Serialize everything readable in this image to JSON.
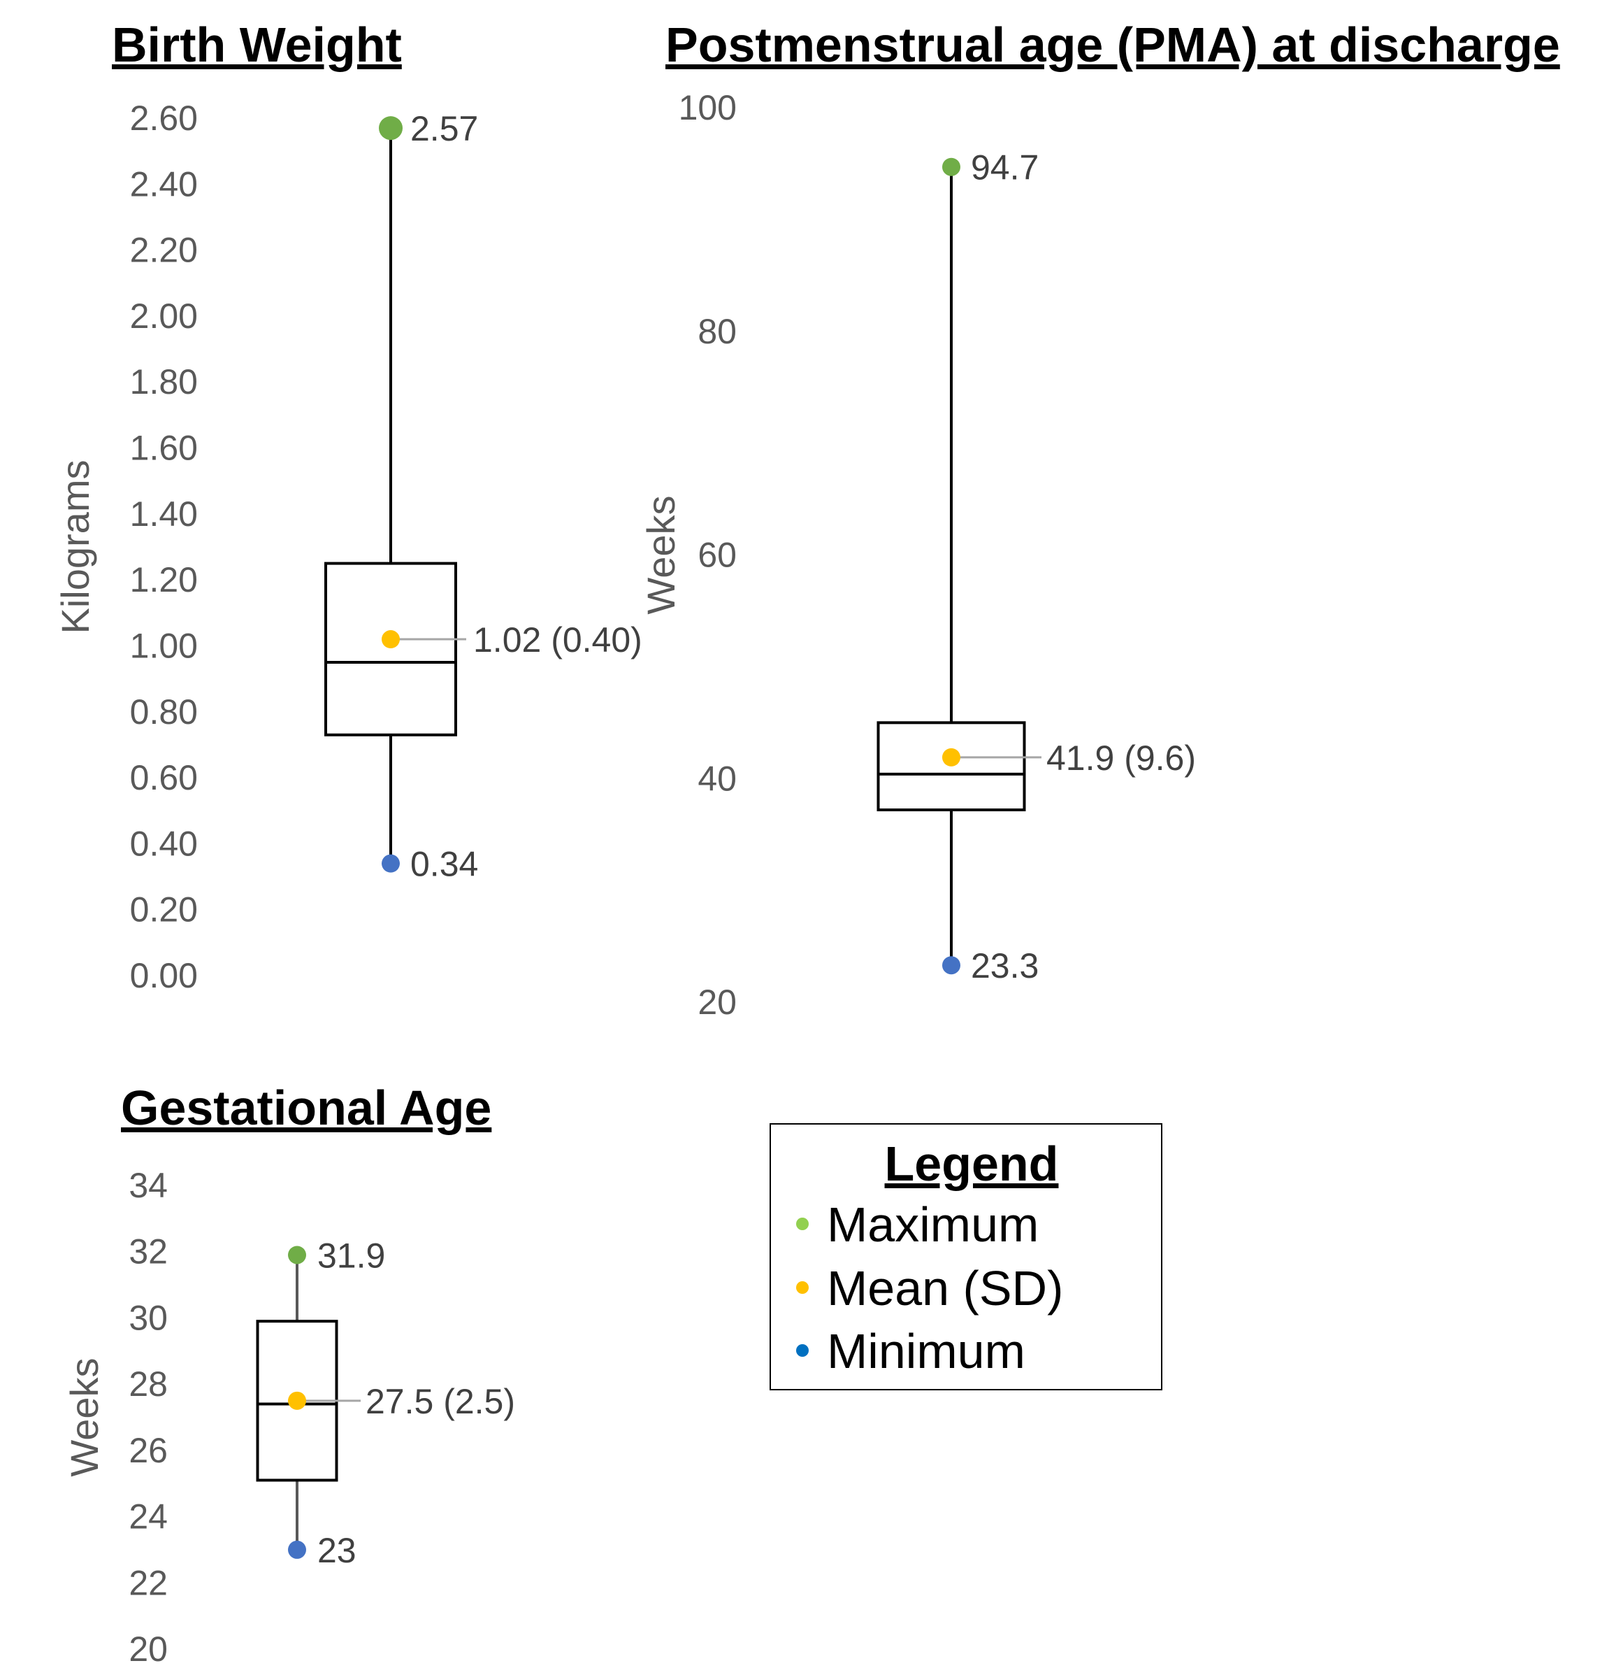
{
  "legend": {
    "title": "Legend",
    "items": [
      {
        "label": "Maximum",
        "color": "#92d050"
      },
      {
        "label": "Mean (SD)",
        "color": "#ffc000"
      },
      {
        "label": "Minimum",
        "color": "#0070c0"
      }
    ]
  },
  "chart_data": [
    {
      "type": "boxplot",
      "title": "Birth Weight",
      "ylabel": "Kilograms",
      "ylim": [
        0,
        2.6
      ],
      "yticks": [
        "0.00",
        "0.20",
        "0.40",
        "0.60",
        "0.80",
        "1.00",
        "1.20",
        "1.40",
        "1.60",
        "1.80",
        "2.00",
        "2.20",
        "2.40",
        "2.60"
      ],
      "ytick_values": [
        0,
        0.2,
        0.4,
        0.6,
        0.8,
        1.0,
        1.2,
        1.4,
        1.6,
        1.8,
        2.0,
        2.2,
        2.4,
        2.6
      ],
      "min": 0.34,
      "q1": 0.73,
      "median": 0.95,
      "q3": 1.25,
      "max": 2.57,
      "mean": 1.02,
      "labels": {
        "max": "2.57",
        "mean": "1.02 (0.40)",
        "min": "0.34"
      },
      "colors": {
        "max": "#70ad47",
        "mean": "#ffc000",
        "min": "#4472c4"
      }
    },
    {
      "type": "boxplot",
      "title": "Postmenstrual age (PMA) at discharge",
      "ylabel": "Weeks",
      "ylim": [
        20,
        100
      ],
      "yticks": [
        "20",
        "40",
        "60",
        "80",
        "100"
      ],
      "ytick_values": [
        20,
        40,
        60,
        80,
        100
      ],
      "min": 23.3,
      "q1": 37.2,
      "median": 40.4,
      "q3": 45.0,
      "max": 94.7,
      "mean": 41.9,
      "labels": {
        "max": "94.7",
        "mean": "41.9 (9.6)",
        "min": "23.3"
      },
      "colors": {
        "max": "#70ad47",
        "mean": "#ffc000",
        "min": "#4472c4"
      }
    },
    {
      "type": "boxplot",
      "title": "Gestational Age",
      "ylabel": "Weeks",
      "ylim": [
        20,
        34
      ],
      "yticks": [
        "20",
        "22",
        "24",
        "26",
        "28",
        "30",
        "32",
        "34"
      ],
      "ytick_values": [
        20,
        22,
        24,
        26,
        28,
        30,
        32,
        34
      ],
      "min": 23,
      "q1": 25.1,
      "median": 27.4,
      "q3": 29.9,
      "max": 31.9,
      "mean": 27.5,
      "labels": {
        "max": "31.9",
        "mean": "27.5 (2.5)",
        "min": "23"
      },
      "colors": {
        "max": "#70ad47",
        "mean": "#ffc000",
        "min": "#4472c4"
      }
    }
  ]
}
